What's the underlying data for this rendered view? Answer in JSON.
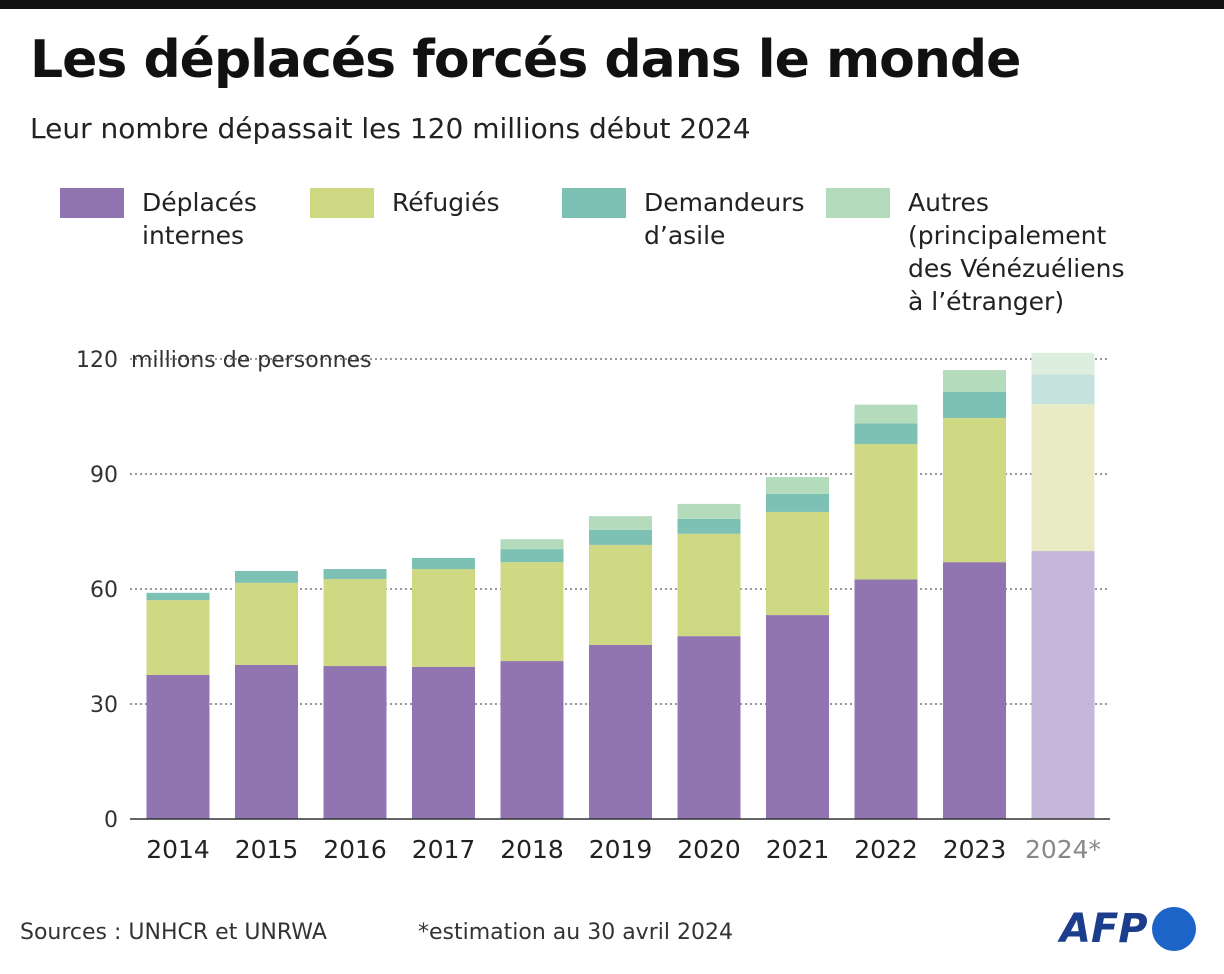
{
  "title": "Les déplacés forcés dans le monde",
  "subtitle": "Leur nombre dépassait les 120 millions début 2024",
  "legend": [
    {
      "label": "Déplacés internes",
      "color": "#9175b1"
    },
    {
      "label": "Réfugiés",
      "color": "#cfd882"
    },
    {
      "label": "Demandeurs d’asile",
      "color": "#7dc1b5"
    },
    {
      "label": "Autres (principalement des Vénézuéliens à l’étranger)",
      "color": "#b3dbbc"
    }
  ],
  "chart_data": {
    "type": "bar",
    "stacked": true,
    "ylabel": "millions de personnes",
    "ylim": [
      0,
      120
    ],
    "yticks": [
      0,
      30,
      60,
      90,
      120
    ],
    "grid": true,
    "categories": [
      "2014",
      "2015",
      "2016",
      "2017",
      "2018",
      "2019",
      "2020",
      "2021",
      "2022",
      "2023",
      "2024*"
    ],
    "estimate_colors": [
      "#c5b6da",
      "#e8ebc4",
      "#c5e2dc",
      "#ddeedf"
    ],
    "series": [
      {
        "name": "Déplacés internes",
        "color": "#9175b1",
        "values": [
          37.6,
          40.2,
          39.9,
          39.7,
          41.2,
          45.4,
          47.7,
          53.2,
          62.5,
          67.0,
          69.9
        ]
      },
      {
        "name": "Réfugiés",
        "color": "#cfd882",
        "values": [
          19.5,
          21.4,
          22.7,
          25.5,
          25.8,
          26.1,
          26.7,
          26.9,
          35.3,
          37.6,
          38.3
        ]
      },
      {
        "name": "Demandeurs d’asile",
        "color": "#7dc1b5",
        "values": [
          1.9,
          3.1,
          2.6,
          2.9,
          3.4,
          3.9,
          3.9,
          4.7,
          5.4,
          6.8,
          7.8
        ]
      },
      {
        "name": "Autres (principalement des Vénézuéliens à l’étranger)",
        "color": "#b3dbbc",
        "values": [
          0,
          0,
          0,
          0,
          2.6,
          3.6,
          3.9,
          4.4,
          4.9,
          5.7,
          5.6
        ]
      }
    ]
  },
  "footer": {
    "sources": "Sources : UNHCR et UNRWA",
    "note": "*estimation au 30 avril 2024",
    "logo": "AFP"
  }
}
